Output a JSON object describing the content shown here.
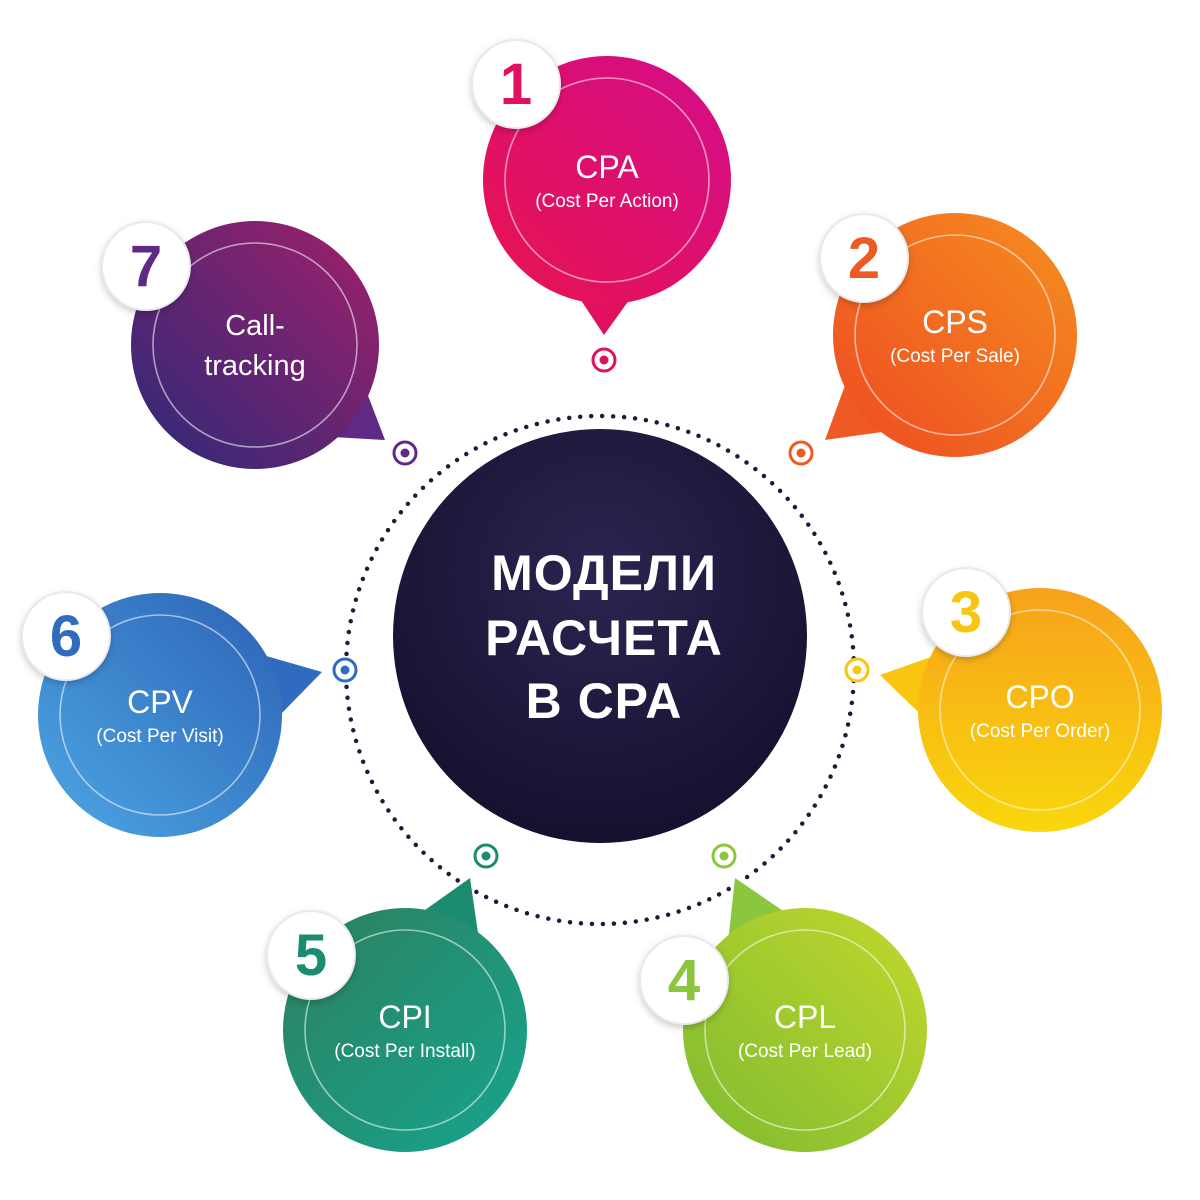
{
  "center": {
    "lines": [
      "МОДЕЛИ",
      "РАСЧЕТА",
      "В CPA"
    ]
  },
  "items": [
    {
      "number": "1",
      "title": "CPA",
      "subtitle": "(Cost Per Action)",
      "color_start": "#e8134f",
      "color_end": "#d30d8a",
      "accent": "#e0115e"
    },
    {
      "number": "2",
      "title": "CPS",
      "subtitle": "(Cost Per Sale)",
      "color_start": "#ee4a23",
      "color_end": "#f58f1f",
      "accent": "#ee5a23"
    },
    {
      "number": "3",
      "title": "CPO",
      "subtitle": "(Cost Per Order)",
      "color_start": "#f7a21b",
      "color_end": "#f9d70c",
      "accent": "#f8c510"
    },
    {
      "number": "4",
      "title": "CPL",
      "subtitle": "(Cost Per Lead)",
      "color_start": "#7dbb31",
      "color_end": "#c3d82c",
      "accent": "#8cc63f"
    },
    {
      "number": "5",
      "title": "CPI",
      "subtitle": "(Cost Per Install)",
      "color_start": "#2d7f5e",
      "color_end": "#16a58e",
      "accent": "#1b8c70"
    },
    {
      "number": "6",
      "title": "CPV",
      "subtitle": "(Cost Per Visit)",
      "color_start": "#2c62b5",
      "color_end": "#4da7e4",
      "accent": "#2f6cc0"
    },
    {
      "number": "7",
      "title": "Call-\ntracking",
      "subtitle": "",
      "color_start": "#2a2a78",
      "color_end": "#a21f6a",
      "accent": "#5e2a85"
    }
  ]
}
